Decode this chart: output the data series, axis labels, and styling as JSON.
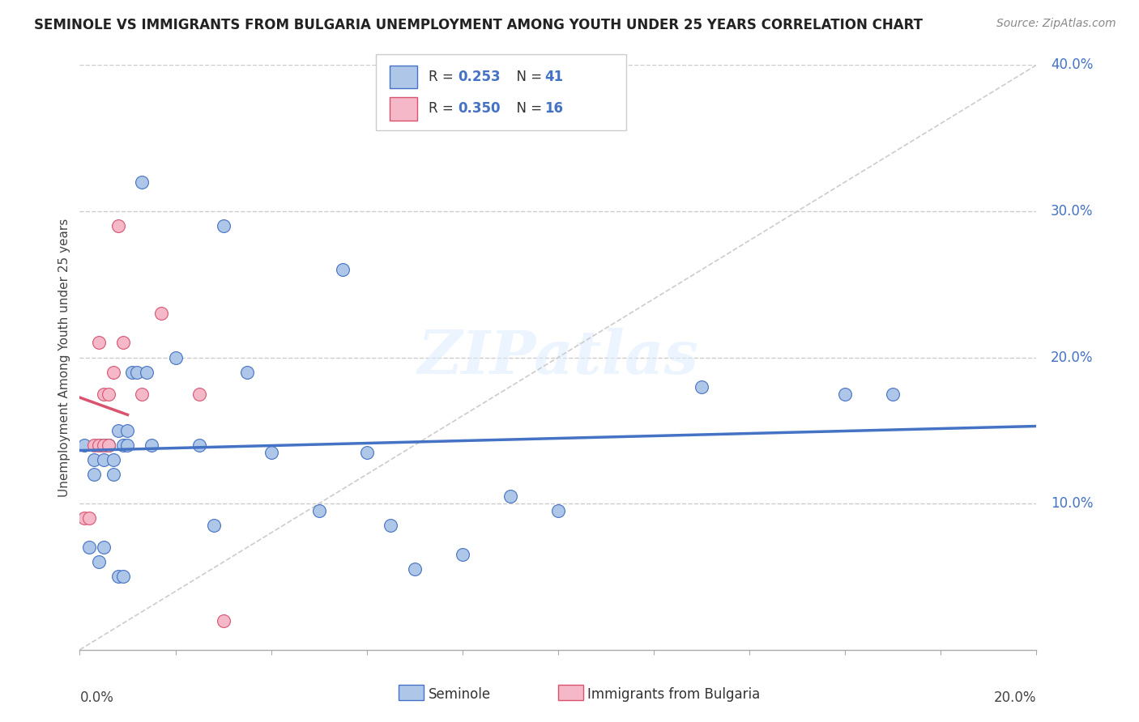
{
  "title": "SEMINOLE VS IMMIGRANTS FROM BULGARIA UNEMPLOYMENT AMONG YOUTH UNDER 25 YEARS CORRELATION CHART",
  "source": "Source: ZipAtlas.com",
  "ylabel": "Unemployment Among Youth under 25 years",
  "r_seminole": 0.253,
  "n_seminole": 41,
  "r_bulgaria": 0.35,
  "n_bulgaria": 16,
  "seminole_color": "#aec6e8",
  "seminole_line_color": "#4472c4",
  "bulgaria_color": "#f5b8c8",
  "bulgaria_line_color": "#d9536f",
  "seminole_x": [
    0.001,
    0.002,
    0.003,
    0.003,
    0.004,
    0.004,
    0.005,
    0.005,
    0.005,
    0.006,
    0.006,
    0.007,
    0.007,
    0.008,
    0.008,
    0.009,
    0.009,
    0.01,
    0.01,
    0.011,
    0.012,
    0.013,
    0.014,
    0.015,
    0.02,
    0.025,
    0.028,
    0.03,
    0.035,
    0.04,
    0.05,
    0.055,
    0.06,
    0.065,
    0.07,
    0.08,
    0.09,
    0.1,
    0.13,
    0.16,
    0.17
  ],
  "seminole_y": [
    0.14,
    0.07,
    0.13,
    0.12,
    0.14,
    0.06,
    0.13,
    0.14,
    0.07,
    0.14,
    0.14,
    0.13,
    0.12,
    0.15,
    0.05,
    0.14,
    0.05,
    0.14,
    0.15,
    0.19,
    0.19,
    0.32,
    0.19,
    0.14,
    0.2,
    0.14,
    0.085,
    0.29,
    0.19,
    0.135,
    0.095,
    0.26,
    0.135,
    0.085,
    0.055,
    0.065,
    0.105,
    0.095,
    0.18,
    0.175,
    0.175
  ],
  "bulgaria_x": [
    0.001,
    0.002,
    0.003,
    0.004,
    0.004,
    0.005,
    0.005,
    0.006,
    0.006,
    0.007,
    0.008,
    0.009,
    0.013,
    0.017,
    0.025,
    0.03
  ],
  "bulgaria_y": [
    0.09,
    0.09,
    0.14,
    0.14,
    0.21,
    0.175,
    0.14,
    0.175,
    0.14,
    0.19,
    0.29,
    0.21,
    0.175,
    0.23,
    0.175,
    0.02
  ],
  "xlim": [
    0.0,
    0.2
  ],
  "ylim": [
    0.0,
    0.4
  ],
  "ytick_vals": [
    0.1,
    0.2,
    0.3,
    0.4
  ],
  "xtick_vals": [
    0.0,
    0.02,
    0.04,
    0.06,
    0.08,
    0.1,
    0.12,
    0.14,
    0.16,
    0.18,
    0.2
  ]
}
